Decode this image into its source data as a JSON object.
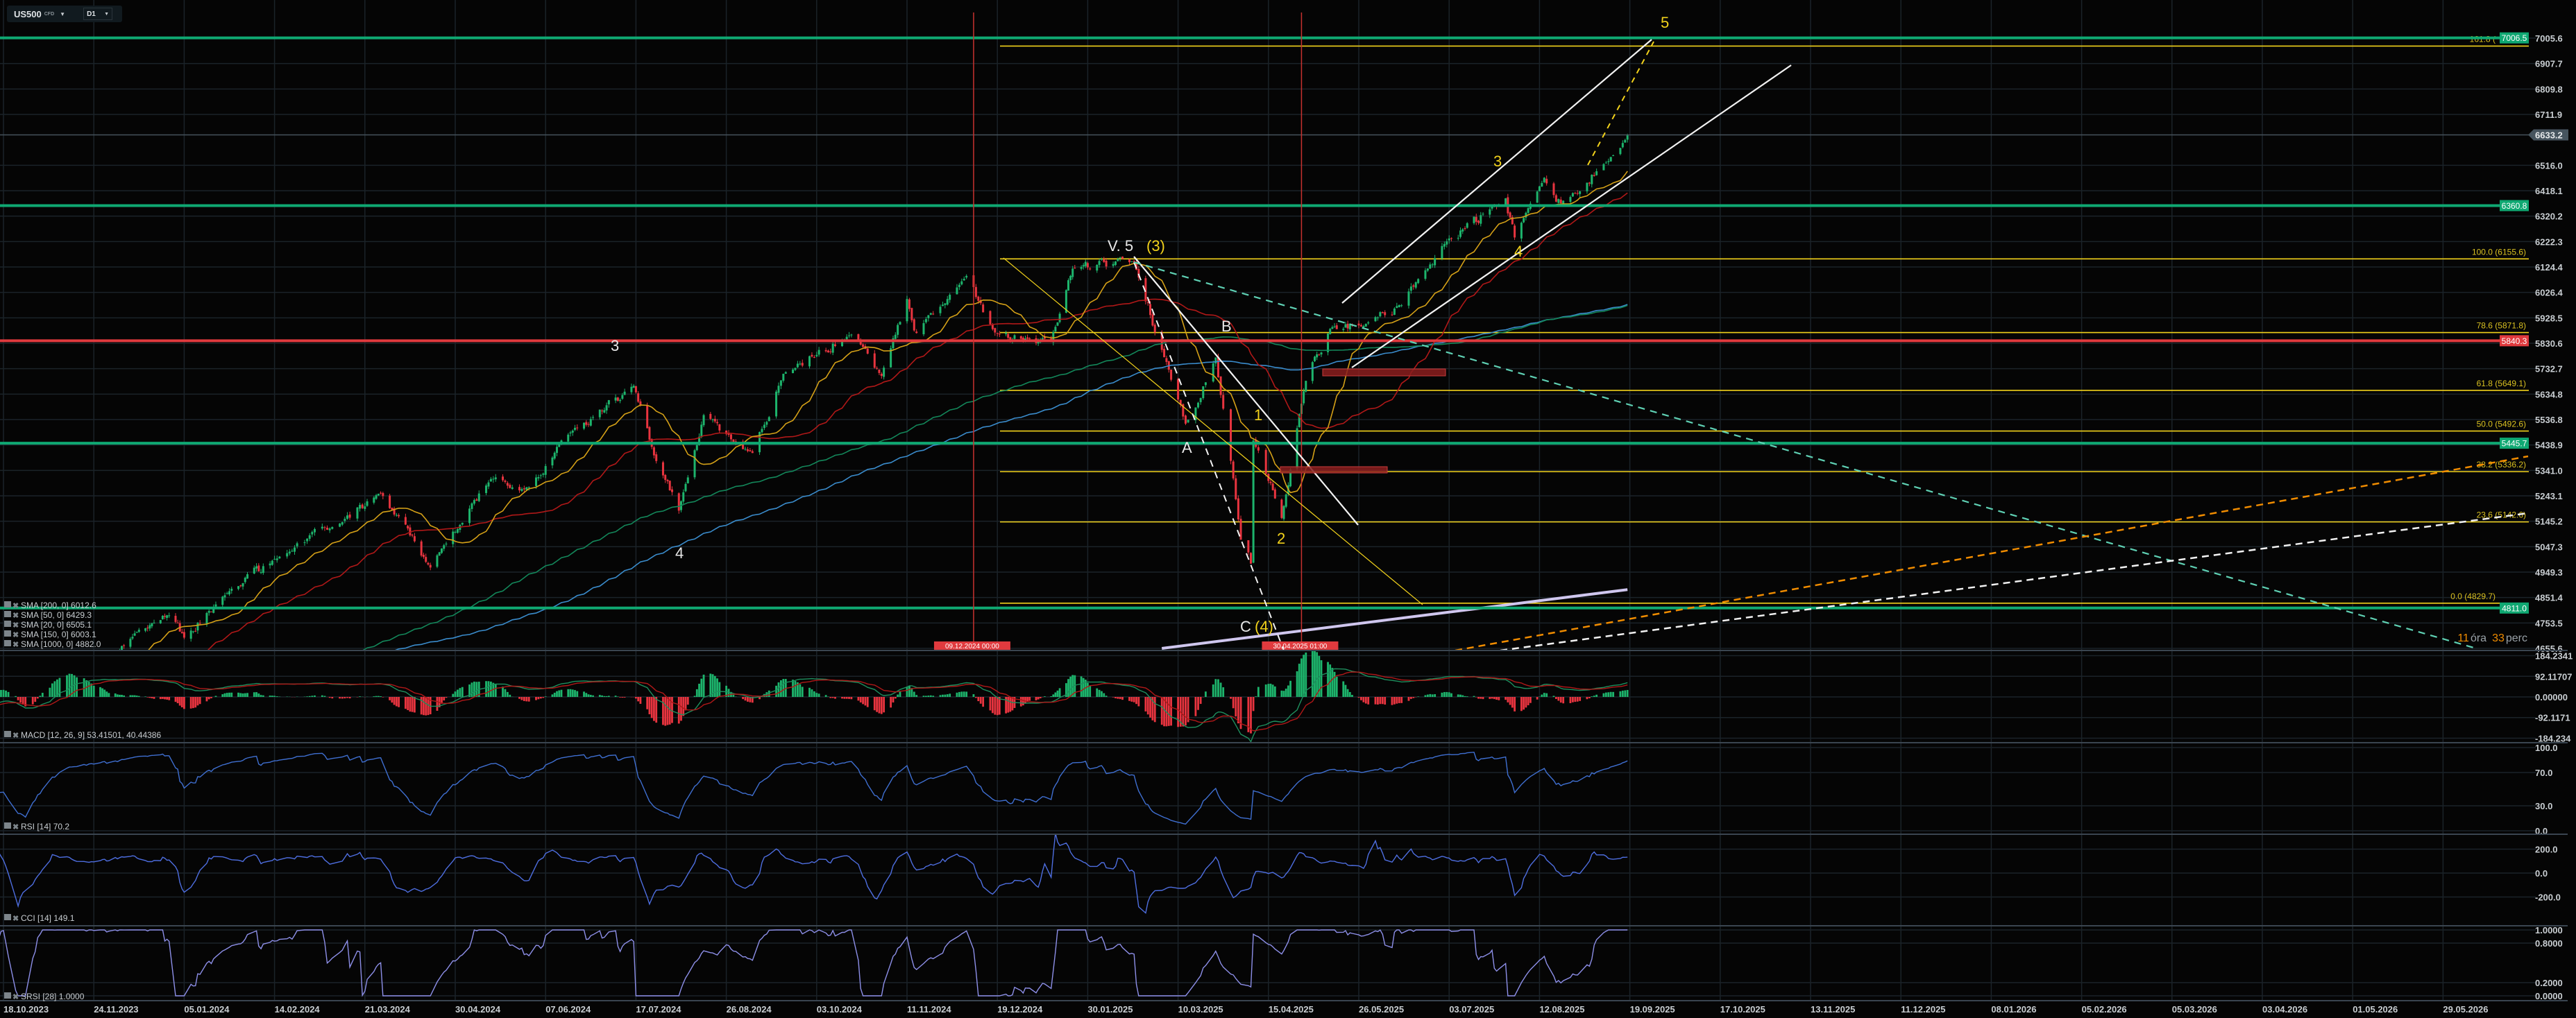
{
  "header": {
    "symbol": "US500",
    "instrument_type": "CFD",
    "timeframe": "D1"
  },
  "countdown": {
    "hours": "11",
    "hours_unit": "óra",
    "minutes": "33",
    "minutes_unit": "perc"
  },
  "legends": {
    "sma200": "SMA [200, 0] 6012.6",
    "sma50": "SMA [50, 0] 6429.3",
    "sma20": "SMA [20, 0] 6505.1",
    "sma150": "SMA [150, 0] 6003.1",
    "sma1000": "SMA [1000, 0] 4882.0",
    "macd": "MACD [12, 26, 9] 53.41501, 40.44386",
    "rsi": "RSI [14] 70.2",
    "cci": "CCI [14] 149.1",
    "srsi": "SRSI [28] 1.0000"
  },
  "colors": {
    "background": "#050505",
    "grid": "#1b2329",
    "candle_up": "#1db46c",
    "candle_down": "#e8343f",
    "level_green": "#0fa872",
    "level_red": "#e03a3e",
    "fib": "#f2d21b",
    "sma20": "#d4a017",
    "sma50": "#b01818",
    "sma150": "#13875a",
    "sma200": "#3a8ccc",
    "sma1000": "#cfc6ee",
    "rsi": "#3f6fd1",
    "cci": "#4e6ee0",
    "srsi": "#8d8fe8",
    "countdown": "#f08c00"
  },
  "chart_data": {
    "type": "candlestick",
    "symbol": "US500",
    "timeframe": "D1",
    "x_ticks": [
      "18.10.2023",
      "24.11.2023",
      "05.01.2024",
      "14.02.2024",
      "21.03.2024",
      "30.04.2024",
      "07.06.2024",
      "17.07.2024",
      "26.08.2024",
      "03.10.2024",
      "11.11.2024",
      "19.12.2024",
      "30.01.2025",
      "10.03.2025",
      "15.04.2025",
      "26.05.2025",
      "03.07.2025",
      "12.08.2025",
      "19.09.2025",
      "17.10.2025",
      "13.11.2025",
      "11.12.2025",
      "08.01.2026",
      "05.02.2026",
      "05.03.2026",
      "03.04.2026",
      "01.05.2026",
      "29.05.2026"
    ],
    "price_ticks": [
      "7005.6",
      "6907.7",
      "6809.8",
      "6711.9",
      "6516.0",
      "6418.1",
      "6320.2",
      "6222.3",
      "6124.4",
      "6026.4",
      "5928.5",
      "5830.6",
      "5732.7",
      "5634.8",
      "5536.8",
      "5438.9",
      "5341.0",
      "5243.1",
      "5145.2",
      "5047.3",
      "4949.3",
      "4851.4",
      "4753.5",
      "4655.6"
    ],
    "price_range": [
      4655.6,
      7005.6
    ],
    "close_anchors": [
      [
        "18.10.2023",
        4315
      ],
      [
        "27.10.2023",
        4117
      ],
      [
        "14.11.2023",
        4495
      ],
      [
        "24.11.2023",
        4559
      ],
      [
        "14.12.2023",
        4719
      ],
      [
        "28.12.2023",
        4783
      ],
      [
        "05.01.2024",
        4697
      ],
      [
        "24.01.2024",
        4868
      ],
      [
        "14.02.2024",
        5000
      ],
      [
        "08.03.2024",
        5123
      ],
      [
        "28.03.2024",
        5254
      ],
      [
        "19.04.2024",
        4967
      ],
      [
        "15.05.2024",
        5308
      ],
      [
        "31.05.2024",
        5277
      ],
      [
        "18.06.2024",
        5487
      ],
      [
        "16.07.2024",
        5667
      ],
      [
        "25.07.2024",
        5399
      ],
      [
        "05.08.2024",
        5186
      ],
      [
        "16.08.2024",
        5554
      ],
      [
        "06.09.2024",
        5408
      ],
      [
        "19.09.2024",
        5713
      ],
      [
        "18.10.2024",
        5864
      ],
      [
        "31.10.2024",
        5705
      ],
      [
        "11.11.2024",
        6001
      ],
      [
        "15.11.2024",
        5870
      ],
      [
        "06.12.2024",
        6090
      ],
      [
        "18.12.2024",
        5872
      ],
      [
        "13.01.2025",
        5836
      ],
      [
        "23.01.2025",
        6118
      ],
      [
        "19.02.2025",
        6144
      ],
      [
        "10.03.2025",
        5614
      ],
      [
        "13.03.2025",
        5521
      ],
      [
        "25.03.2025",
        5776
      ],
      [
        "04.04.2025",
        5074
      ],
      [
        "08.04.2025",
        4982
      ],
      [
        "09.04.2025",
        5456
      ],
      [
        "21.04.2025",
        5158
      ],
      [
        "02.05.2025",
        5686
      ],
      [
        "13.05.2025",
        5886
      ],
      [
        "30.05.2025",
        5911
      ],
      [
        "13.06.2025",
        5977
      ],
      [
        "30.06.2025",
        6205
      ],
      [
        "28.07.2025",
        6389
      ],
      [
        "01.08.2025",
        6238
      ],
      [
        "14.08.2025",
        6468
      ],
      [
        "21.08.2025",
        6370
      ],
      [
        "10.09.2025",
        6532
      ],
      [
        "18.09.2025",
        6633.2
      ]
    ],
    "last_price": "6633.2",
    "sma1000_visible": [
      [
        "03.03.2025",
        4655.6
      ],
      [
        "18.09.2025",
        4882.0
      ]
    ],
    "horizontal_levels": [
      {
        "price": 7006.5,
        "label": "7006.5",
        "color": "green"
      },
      {
        "price": 6360.8,
        "label": "6360.8",
        "color": "green"
      },
      {
        "price": 5840.3,
        "label": "5840.3",
        "color": "red"
      },
      {
        "price": 5445.7,
        "label": "5445.7",
        "color": "green"
      },
      {
        "price": 4811.0,
        "label": "4811.0",
        "color": "green"
      }
    ],
    "fibonacci": [
      {
        "price": 6975.0,
        "label": "161.8 ("
      },
      {
        "price": 6155.6,
        "label": "100.0 (6155.6)"
      },
      {
        "price": 5871.8,
        "label": "78.6 (5871.8)"
      },
      {
        "price": 5649.1,
        "label": "61.8 (5649.1)"
      },
      {
        "price": 5492.6,
        "label": "50.0 (5492.6)"
      },
      {
        "price": 5336.2,
        "label": "38.2 (5336.2)"
      },
      {
        "price": 5142.6,
        "label": "23.6 (5142.6)"
      },
      {
        "price": 4829.7,
        "label": "0.0 (4829.7)"
      }
    ],
    "vertical_markers": [
      {
        "date": "09.12.2024",
        "label": "09.12.2024 00:00"
      },
      {
        "date": "30.04.2025",
        "label": "30.04.2025 01:00"
      }
    ],
    "wave_labels": {
      "left3": "3",
      "left4": "4",
      "v5": "V. 5",
      "v5_degree": "(3)",
      "a": "A",
      "b": "B",
      "w1": "1",
      "w2": "2",
      "c": "C",
      "c_degree": "(4)",
      "r3": "3",
      "r4": "4",
      "r5": "5"
    },
    "macd_ticks": [
      "184.2341",
      "92.11707",
      "0.00000",
      "-92.1171",
      "-184.234"
    ],
    "rsi_ticks": [
      "100.0",
      "70.0",
      "30.0",
      "0.0"
    ],
    "cci_ticks": [
      "200.0",
      "0.0",
      "-200.0"
    ],
    "srsi_ticks": [
      "1.0000",
      "0.8000",
      "0.2000",
      "0.0000"
    ]
  }
}
